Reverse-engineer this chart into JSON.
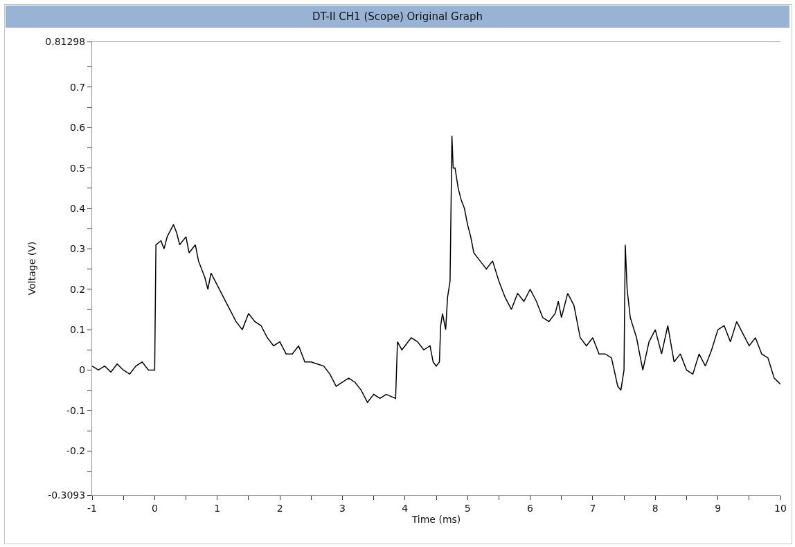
{
  "chart_data": {
    "type": "line",
    "title": "DT-II CH1 (Scope) Original Graph",
    "xlabel": "Time (ms)",
    "ylabel": "Voltage (V)",
    "x": [
      -1,
      -0.9,
      -0.8,
      -0.7,
      -0.6,
      -0.5,
      -0.4,
      -0.3,
      -0.2,
      -0.1,
      -0.02,
      0,
      0.02,
      0.1,
      0.15,
      0.2,
      0.3,
      0.35,
      0.4,
      0.5,
      0.55,
      0.65,
      0.7,
      0.8,
      0.85,
      0.9,
      1,
      1.1,
      1.2,
      1.3,
      1.4,
      1.5,
      1.6,
      1.7,
      1.8,
      1.9,
      2,
      2.1,
      2.2,
      2.3,
      2.4,
      2.5,
      2.6,
      2.7,
      2.8,
      2.9,
      3,
      3.1,
      3.2,
      3.3,
      3.4,
      3.5,
      3.6,
      3.7,
      3.85,
      3.88,
      3.95,
      4,
      4.1,
      4.2,
      4.3,
      4.4,
      4.45,
      4.5,
      4.55,
      4.57,
      4.6,
      4.65,
      4.68,
      4.72,
      4.74,
      4.75,
      4.77,
      4.8,
      4.85,
      4.9,
      4.95,
      5,
      5.05,
      5.1,
      5.2,
      5.3,
      5.4,
      5.5,
      5.6,
      5.7,
      5.8,
      5.9,
      6,
      6.1,
      6.2,
      6.3,
      6.4,
      6.45,
      6.5,
      6.6,
      6.7,
      6.8,
      6.9,
      7,
      7.1,
      7.2,
      7.3,
      7.4,
      7.45,
      7.5,
      7.52,
      7.55,
      7.6,
      7.7,
      7.8,
      7.9,
      8,
      8.1,
      8.2,
      8.3,
      8.4,
      8.5,
      8.6,
      8.7,
      8.8,
      8.9,
      9,
      9.1,
      9.2,
      9.3,
      9.4,
      9.5,
      9.6,
      9.7,
      9.8,
      9.9,
      10
    ],
    "series": [
      {
        "color": "#000000",
        "values": [
          0.01,
          0.0,
          0.01,
          -0.005,
          0.015,
          0.0,
          -0.01,
          0.01,
          0.02,
          0.0,
          0.0,
          0.0,
          0.31,
          0.32,
          0.3,
          0.33,
          0.36,
          0.34,
          0.31,
          0.33,
          0.29,
          0.31,
          0.27,
          0.23,
          0.2,
          0.24,
          0.21,
          0.18,
          0.15,
          0.12,
          0.1,
          0.14,
          0.12,
          0.11,
          0.08,
          0.06,
          0.07,
          0.04,
          0.04,
          0.06,
          0.02,
          0.02,
          0.015,
          0.01,
          -0.01,
          -0.04,
          -0.03,
          -0.02,
          -0.03,
          -0.05,
          -0.08,
          -0.06,
          -0.07,
          -0.06,
          -0.07,
          0.07,
          0.05,
          0.06,
          0.08,
          0.07,
          0.05,
          0.06,
          0.02,
          0.01,
          0.02,
          0.11,
          0.14,
          0.1,
          0.18,
          0.22,
          0.45,
          0.58,
          0.5,
          0.5,
          0.45,
          0.42,
          0.4,
          0.36,
          0.33,
          0.29,
          0.27,
          0.25,
          0.27,
          0.22,
          0.18,
          0.15,
          0.19,
          0.17,
          0.2,
          0.17,
          0.13,
          0.12,
          0.14,
          0.17,
          0.13,
          0.19,
          0.16,
          0.08,
          0.06,
          0.08,
          0.04,
          0.04,
          0.03,
          -0.04,
          -0.05,
          0.0,
          0.31,
          0.2,
          0.13,
          0.08,
          0.0,
          0.07,
          0.1,
          0.04,
          0.11,
          0.02,
          0.04,
          0.0,
          -0.01,
          0.04,
          0.01,
          0.05,
          0.1,
          0.11,
          0.07,
          0.12,
          0.09,
          0.06,
          0.08,
          0.04,
          0.03,
          -0.02,
          -0.035
        ]
      }
    ],
    "xlim": [
      -1,
      10
    ],
    "xticks": [
      -1,
      {
        "value": -0.5,
        "label": null
      },
      0,
      {
        "value": 0.5,
        "label": null
      },
      1,
      {
        "value": 1.5,
        "label": null
      },
      2,
      {
        "value": 2.5,
        "label": null
      },
      3,
      {
        "value": 3.5,
        "label": null
      },
      4,
      {
        "value": 4.5,
        "label": null
      },
      5,
      {
        "value": 5.5,
        "label": null
      },
      6,
      {
        "value": 6.5,
        "label": null
      },
      7,
      {
        "value": 7.5,
        "label": null
      },
      8,
      {
        "value": 8.5,
        "label": null
      },
      9,
      {
        "value": 9.5,
        "label": null
      },
      10
    ],
    "ylim": [
      -0.3093,
      0.81298
    ],
    "yticks": [
      -0.3093,
      {
        "value": -0.25,
        "label": null
      },
      -0.2,
      {
        "value": -0.15,
        "label": null
      },
      -0.1,
      {
        "value": -0.05,
        "label": null
      },
      0,
      {
        "value": 0.05,
        "label": null
      },
      0.1,
      {
        "value": 0.15,
        "label": null
      },
      0.2,
      {
        "value": 0.25,
        "label": null
      },
      0.3,
      {
        "value": 0.35,
        "label": null
      },
      0.4,
      {
        "value": 0.45,
        "label": null
      },
      0.5,
      {
        "value": 0.55,
        "label": null
      },
      0.6,
      {
        "value": 0.65,
        "label": null
      },
      0.7,
      {
        "value": 0.75,
        "label": null
      },
      0.81298
    ],
    "grid": false,
    "marker": "none",
    "line_style": "solid"
  }
}
